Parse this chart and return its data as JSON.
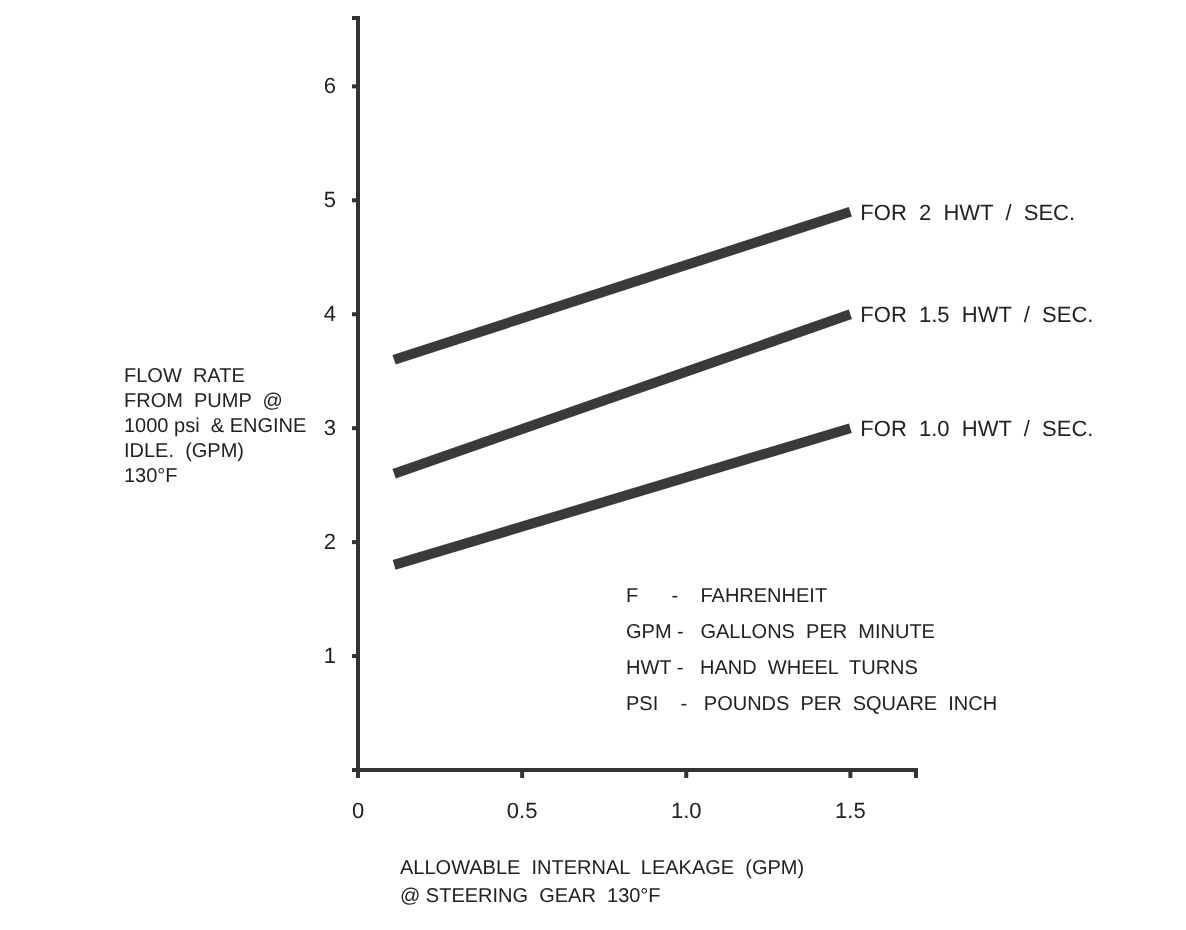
{
  "chart_data": {
    "type": "line",
    "xlabel": "ALLOWABLE  INTERNAL  LEAKAGE  (GPM)\n@ STEERING  GEAR  130°F",
    "ylabel": "FLOW  RATE\nFROM  PUMP  @\n1000 psi  & ENGINE\nIDLE.  (GPM)\n130°F",
    "x": [
      0.11,
      1.5
    ],
    "series": [
      {
        "name": "FOR  2  HWT  /  SEC.",
        "color": "#3a3a3a",
        "values": [
          3.6,
          4.9
        ]
      },
      {
        "name": "FOR  1.5  HWT  /  SEC.",
        "color": "#3a3a3a",
        "values": [
          2.6,
          4.0
        ]
      },
      {
        "name": "FOR  1.0  HWT  /  SEC.",
        "color": "#3a3a3a",
        "values": [
          1.8,
          3.0
        ]
      }
    ],
    "xlim": [
      0,
      1.7
    ],
    "xticks": [
      0,
      0.5,
      {
        "value": 1,
        "label": "1.0"
      },
      1.5
    ],
    "ylim": [
      0,
      6.6
    ],
    "yticks": [
      1,
      2,
      3,
      4,
      5,
      6
    ],
    "annotations": [
      "F      -    FAHRENHEIT",
      "GPM -   GALLONS  PER  MINUTE",
      "HWT -   HAND  WHEEL  TURNS",
      "PSI    -   POUNDS  PER  SQUARE  INCH"
    ],
    "grid": false,
    "legend": false,
    "marker": "none",
    "line_style": "solid"
  }
}
